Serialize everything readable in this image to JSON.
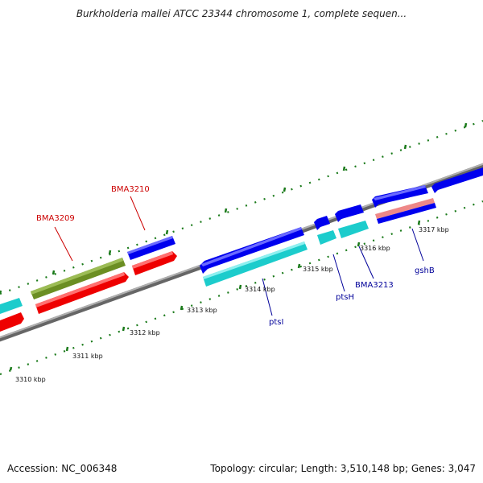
{
  "title": "Burkholderia mallei ATCC 23344 chromosome 1, complete sequen...",
  "footer": {
    "accession": "Accession: NC_006348",
    "summary": "Topology: circular; Length: 3,510,148 bp; Genes: 3,047"
  },
  "ruler": {
    "labels": [
      "3310 kbp",
      "3311 kbp",
      "3312 kbp",
      "3313 kbp",
      "3314 kbp",
      "3315 kbp",
      "3316 kbp",
      "3317 kbp"
    ]
  },
  "genes": [
    {
      "name": "BMA3209",
      "label_color": "#cc0000"
    },
    {
      "name": "BMA3210",
      "label_color": "#cc0000"
    },
    {
      "name": "ptsI",
      "label_color": "#000099"
    },
    {
      "name": "ptsH",
      "label_color": "#000099"
    },
    {
      "name": "BMA3213",
      "label_color": "#000099"
    },
    {
      "name": "gshB",
      "label_color": "#000099"
    }
  ],
  "colors": {
    "backbone": "#888888",
    "ticks": "#1a7a1a",
    "blue": "#0000ee",
    "cyan": "#1ccccc",
    "red": "#ee0000",
    "olive": "#6b8e23",
    "pink": "#ee8888"
  }
}
